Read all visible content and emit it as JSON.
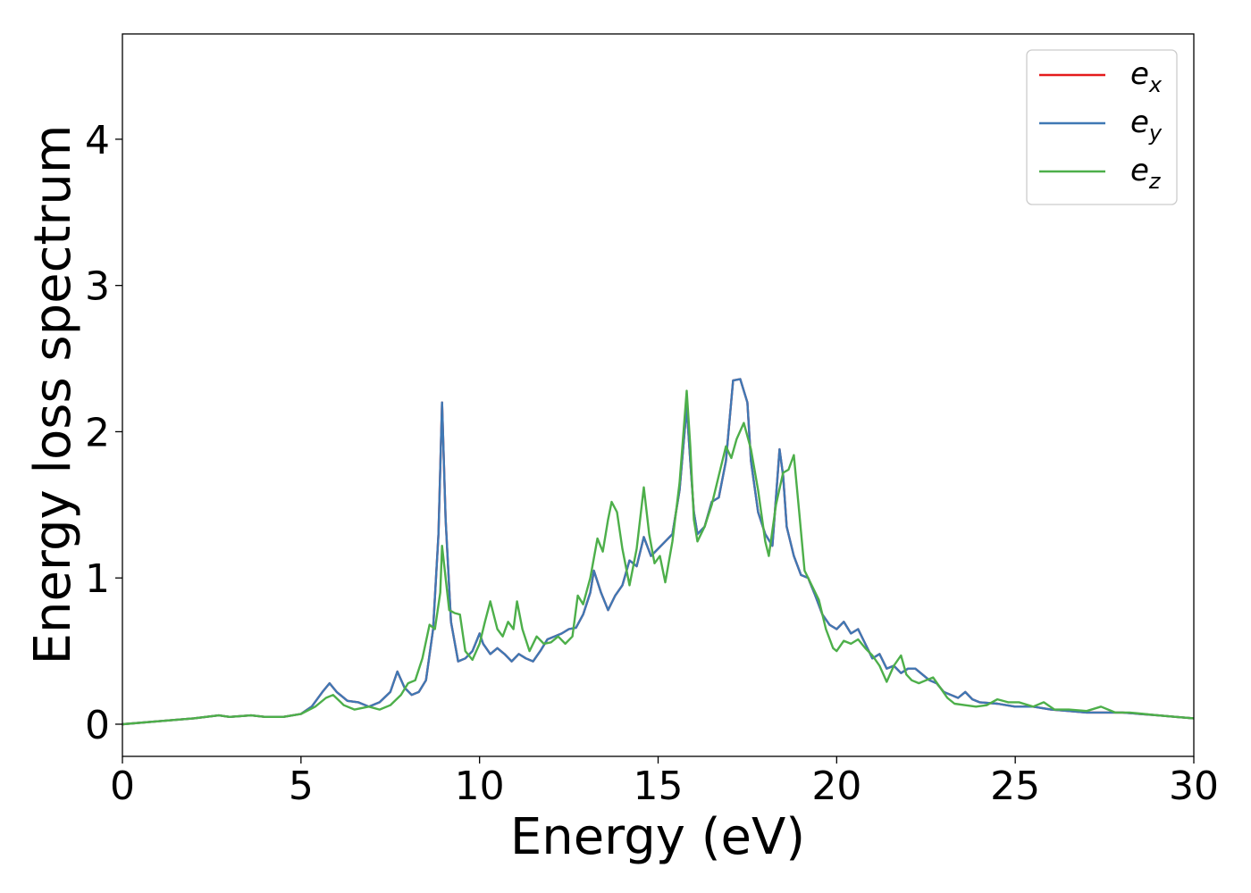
{
  "chart_data": {
    "type": "line",
    "xlabel": "Energy (eV)",
    "ylabel": "Energy loss spectrum",
    "xlim": [
      0,
      30
    ],
    "ylim": [
      -0.22,
      4.72
    ],
    "xticks": [
      0,
      5,
      10,
      15,
      20,
      25,
      30
    ],
    "yticks": [
      0,
      1,
      2,
      3,
      4
    ],
    "grid": false,
    "legend_position": "top-right",
    "series": [
      {
        "name": "e_x",
        "label_base": "e",
        "label_sub": "x",
        "color": "#e41a1c",
        "x": [
          0,
          1,
          2,
          2.7,
          3,
          3.6,
          4,
          4.5,
          5,
          5.3,
          5.6,
          5.8,
          6.0,
          6.3,
          6.6,
          6.9,
          7.2,
          7.5,
          7.7,
          7.9,
          8.1,
          8.3,
          8.5,
          8.7,
          8.85,
          8.95,
          9.05,
          9.2,
          9.4,
          9.6,
          9.8,
          10.0,
          10.1,
          10.3,
          10.5,
          10.7,
          10.9,
          11.1,
          11.3,
          11.5,
          11.7,
          11.9,
          12.1,
          12.3,
          12.5,
          12.7,
          12.9,
          13.1,
          13.2,
          13.4,
          13.6,
          13.8,
          14.0,
          14.2,
          14.4,
          14.6,
          14.8,
          15.0,
          15.2,
          15.4,
          15.6,
          15.8,
          15.9,
          16.0,
          16.1,
          16.3,
          16.5,
          16.7,
          16.9,
          17.1,
          17.3,
          17.5,
          17.6,
          17.8,
          18.0,
          18.2,
          18.4,
          18.5,
          18.6,
          18.8,
          19.0,
          19.2,
          19.4,
          19.6,
          19.8,
          20.0,
          20.2,
          20.4,
          20.6,
          20.8,
          21.0,
          21.2,
          21.4,
          21.6,
          21.8,
          22.0,
          22.2,
          22.4,
          22.6,
          22.8,
          23.0,
          23.2,
          23.4,
          23.6,
          23.8,
          24.0,
          24.5,
          25.0,
          25.5,
          26.0,
          26.5,
          27.0,
          27.5,
          28.0,
          28.5,
          29.0,
          29.5,
          30.0
        ],
        "y": [
          0.0,
          0.02,
          0.04,
          0.06,
          0.05,
          0.06,
          0.05,
          0.05,
          0.07,
          0.12,
          0.22,
          0.28,
          0.22,
          0.16,
          0.15,
          0.12,
          0.15,
          0.22,
          0.36,
          0.25,
          0.2,
          0.22,
          0.3,
          0.65,
          1.3,
          2.2,
          1.4,
          0.7,
          0.43,
          0.45,
          0.5,
          0.62,
          0.55,
          0.48,
          0.52,
          0.48,
          0.43,
          0.48,
          0.45,
          0.43,
          0.5,
          0.58,
          0.6,
          0.62,
          0.65,
          0.66,
          0.75,
          0.9,
          1.05,
          0.9,
          0.78,
          0.88,
          0.95,
          1.12,
          1.08,
          1.28,
          1.15,
          1.2,
          1.25,
          1.3,
          1.6,
          2.17,
          1.8,
          1.45,
          1.3,
          1.35,
          1.52,
          1.55,
          1.8,
          2.35,
          2.36,
          2.2,
          1.8,
          1.45,
          1.3,
          1.22,
          1.88,
          1.7,
          1.35,
          1.15,
          1.02,
          1.0,
          0.88,
          0.75,
          0.68,
          0.65,
          0.7,
          0.62,
          0.65,
          0.55,
          0.45,
          0.48,
          0.38,
          0.4,
          0.35,
          0.38,
          0.38,
          0.34,
          0.3,
          0.28,
          0.22,
          0.2,
          0.18,
          0.22,
          0.17,
          0.15,
          0.14,
          0.12,
          0.12,
          0.1,
          0.09,
          0.08,
          0.08,
          0.08,
          0.07,
          0.06,
          0.05,
          0.04
        ]
      },
      {
        "name": "e_y",
        "label_base": "e",
        "label_sub": "y",
        "color": "#3f78b4",
        "x": [
          0,
          1,
          2,
          2.7,
          3,
          3.6,
          4,
          4.5,
          5,
          5.3,
          5.6,
          5.8,
          6.0,
          6.3,
          6.6,
          6.9,
          7.2,
          7.5,
          7.7,
          7.9,
          8.1,
          8.3,
          8.5,
          8.7,
          8.85,
          8.95,
          9.05,
          9.2,
          9.4,
          9.6,
          9.8,
          10.0,
          10.1,
          10.3,
          10.5,
          10.7,
          10.9,
          11.1,
          11.3,
          11.5,
          11.7,
          11.9,
          12.1,
          12.3,
          12.5,
          12.7,
          12.9,
          13.1,
          13.2,
          13.4,
          13.6,
          13.8,
          14.0,
          14.2,
          14.4,
          14.6,
          14.8,
          15.0,
          15.2,
          15.4,
          15.6,
          15.8,
          15.9,
          16.0,
          16.1,
          16.3,
          16.5,
          16.7,
          16.9,
          17.1,
          17.3,
          17.5,
          17.6,
          17.8,
          18.0,
          18.2,
          18.4,
          18.5,
          18.6,
          18.8,
          19.0,
          19.2,
          19.4,
          19.6,
          19.8,
          20.0,
          20.2,
          20.4,
          20.6,
          20.8,
          21.0,
          21.2,
          21.4,
          21.6,
          21.8,
          22.0,
          22.2,
          22.4,
          22.6,
          22.8,
          23.0,
          23.2,
          23.4,
          23.6,
          23.8,
          24.0,
          24.5,
          25.0,
          25.5,
          26.0,
          26.5,
          27.0,
          27.5,
          28.0,
          28.5,
          29.0,
          29.5,
          30.0
        ],
        "y": [
          0.0,
          0.02,
          0.04,
          0.06,
          0.05,
          0.06,
          0.05,
          0.05,
          0.07,
          0.12,
          0.22,
          0.28,
          0.22,
          0.16,
          0.15,
          0.12,
          0.15,
          0.22,
          0.36,
          0.25,
          0.2,
          0.22,
          0.3,
          0.65,
          1.3,
          2.2,
          1.4,
          0.7,
          0.43,
          0.45,
          0.5,
          0.62,
          0.55,
          0.48,
          0.52,
          0.48,
          0.43,
          0.48,
          0.45,
          0.43,
          0.5,
          0.58,
          0.6,
          0.62,
          0.65,
          0.66,
          0.75,
          0.9,
          1.05,
          0.9,
          0.78,
          0.88,
          0.95,
          1.12,
          1.08,
          1.28,
          1.15,
          1.2,
          1.25,
          1.3,
          1.6,
          2.17,
          1.8,
          1.45,
          1.3,
          1.35,
          1.52,
          1.55,
          1.8,
          2.35,
          2.36,
          2.2,
          1.8,
          1.45,
          1.3,
          1.22,
          1.88,
          1.7,
          1.35,
          1.15,
          1.02,
          1.0,
          0.88,
          0.75,
          0.68,
          0.65,
          0.7,
          0.62,
          0.65,
          0.55,
          0.45,
          0.48,
          0.38,
          0.4,
          0.35,
          0.38,
          0.38,
          0.34,
          0.3,
          0.28,
          0.22,
          0.2,
          0.18,
          0.22,
          0.17,
          0.15,
          0.14,
          0.12,
          0.12,
          0.1,
          0.09,
          0.08,
          0.08,
          0.08,
          0.07,
          0.06,
          0.05,
          0.04
        ]
      },
      {
        "name": "e_z",
        "label_base": "e",
        "label_sub": "z",
        "color": "#4daf4a",
        "x": [
          0,
          1,
          2,
          2.7,
          3,
          3.6,
          4,
          4.5,
          5,
          5.4,
          5.7,
          5.9,
          6.2,
          6.5,
          6.9,
          7.2,
          7.5,
          7.8,
          8.0,
          8.2,
          8.4,
          8.6,
          8.75,
          8.9,
          8.95,
          9.05,
          9.15,
          9.3,
          9.45,
          9.6,
          9.8,
          10.0,
          10.15,
          10.3,
          10.5,
          10.65,
          10.8,
          10.95,
          11.05,
          11.2,
          11.4,
          11.6,
          11.8,
          12.0,
          12.2,
          12.4,
          12.6,
          12.75,
          12.9,
          13.1,
          13.3,
          13.45,
          13.6,
          13.7,
          13.85,
          14.0,
          14.2,
          14.4,
          14.6,
          14.75,
          14.9,
          15.05,
          15.2,
          15.4,
          15.6,
          15.8,
          15.9,
          16.0,
          16.1,
          16.3,
          16.5,
          16.7,
          16.9,
          17.05,
          17.2,
          17.4,
          17.6,
          17.8,
          18.0,
          18.1,
          18.3,
          18.5,
          18.65,
          18.8,
          18.95,
          19.1,
          19.3,
          19.5,
          19.7,
          19.9,
          20.0,
          20.2,
          20.4,
          20.6,
          20.8,
          21.0,
          21.2,
          21.4,
          21.6,
          21.8,
          21.95,
          22.1,
          22.3,
          22.5,
          22.7,
          22.9,
          23.1,
          23.3,
          23.6,
          23.9,
          24.2,
          24.5,
          24.8,
          25.1,
          25.5,
          25.8,
          26.1,
          26.5,
          27.0,
          27.4,
          27.8,
          28.2,
          28.6,
          29.0,
          29.5,
          30.0
        ],
        "y": [
          0.0,
          0.02,
          0.04,
          0.06,
          0.05,
          0.06,
          0.05,
          0.05,
          0.07,
          0.12,
          0.18,
          0.2,
          0.13,
          0.1,
          0.12,
          0.1,
          0.13,
          0.2,
          0.28,
          0.3,
          0.45,
          0.68,
          0.65,
          0.9,
          1.22,
          1.0,
          0.78,
          0.76,
          0.75,
          0.5,
          0.44,
          0.55,
          0.7,
          0.84,
          0.65,
          0.6,
          0.7,
          0.65,
          0.84,
          0.65,
          0.5,
          0.6,
          0.55,
          0.56,
          0.6,
          0.55,
          0.6,
          0.88,
          0.82,
          1.0,
          1.27,
          1.18,
          1.4,
          1.52,
          1.45,
          1.2,
          0.95,
          1.2,
          1.62,
          1.3,
          1.1,
          1.15,
          0.97,
          1.25,
          1.65,
          2.28,
          1.9,
          1.4,
          1.25,
          1.35,
          1.5,
          1.7,
          1.9,
          1.82,
          1.95,
          2.06,
          1.88,
          1.6,
          1.25,
          1.15,
          1.5,
          1.72,
          1.74,
          1.84,
          1.45,
          1.05,
          0.95,
          0.85,
          0.65,
          0.52,
          0.5,
          0.57,
          0.55,
          0.58,
          0.52,
          0.47,
          0.4,
          0.29,
          0.4,
          0.47,
          0.34,
          0.3,
          0.28,
          0.3,
          0.32,
          0.25,
          0.18,
          0.14,
          0.13,
          0.12,
          0.13,
          0.17,
          0.15,
          0.15,
          0.12,
          0.15,
          0.1,
          0.1,
          0.09,
          0.12,
          0.08,
          0.08,
          0.07,
          0.06,
          0.05,
          0.04
        ]
      }
    ]
  }
}
